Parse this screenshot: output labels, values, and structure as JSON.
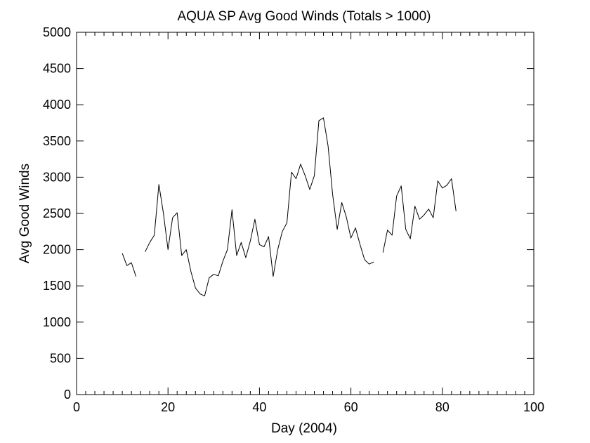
{
  "chart_data": {
    "type": "line",
    "title": "AQUA SP Avg Good Winds (Totals > 1000)",
    "xlabel": "Day (2004)",
    "ylabel": "Avg Good Winds",
    "xlim": [
      0,
      100
    ],
    "ylim": [
      0,
      5000
    ],
    "x_ticks": [
      "0",
      "20",
      "40",
      "60",
      "80",
      "100"
    ],
    "y_ticks": [
      "0",
      "500",
      "1000",
      "1500",
      "2000",
      "2500",
      "3000",
      "3500",
      "4000",
      "4500",
      "5000"
    ],
    "grid": false,
    "line_color": "#000000",
    "segments": [
      {
        "x": [
          10,
          11,
          12,
          13
        ],
        "y": [
          1950,
          1780,
          1820,
          1630
        ]
      },
      {
        "x": [
          15,
          16,
          17,
          18,
          19,
          20,
          21,
          22,
          23,
          24,
          25,
          26,
          27,
          28,
          29,
          30,
          31,
          32,
          33,
          34,
          35,
          36,
          37,
          38,
          39,
          40,
          41,
          42,
          43,
          44,
          45,
          46,
          47,
          48,
          49,
          50,
          51,
          52,
          53,
          54,
          55,
          56,
          57,
          58,
          59,
          60,
          61,
          62,
          63,
          64,
          65
        ],
        "y": [
          1970,
          2100,
          2200,
          2900,
          2500,
          2000,
          2440,
          2510,
          1920,
          2000,
          1700,
          1470,
          1390,
          1360,
          1610,
          1660,
          1640,
          1840,
          2000,
          2550,
          1920,
          2100,
          1890,
          2120,
          2420,
          2070,
          2040,
          2180,
          1630,
          2000,
          2250,
          2370,
          3070,
          2980,
          3180,
          3020,
          2830,
          3020,
          3780,
          3820,
          3430,
          2760,
          2280,
          2650,
          2450,
          2160,
          2300,
          2070,
          1860,
          1800,
          1830
        ]
      },
      {
        "x": [
          67,
          68,
          69,
          70,
          71,
          72,
          73,
          74,
          75,
          76,
          77,
          78,
          79,
          80,
          81,
          82,
          83
        ],
        "y": [
          1960,
          2270,
          2200,
          2740,
          2880,
          2280,
          2150,
          2600,
          2420,
          2480,
          2560,
          2440,
          2950,
          2850,
          2890,
          2980,
          2530
        ]
      }
    ]
  }
}
